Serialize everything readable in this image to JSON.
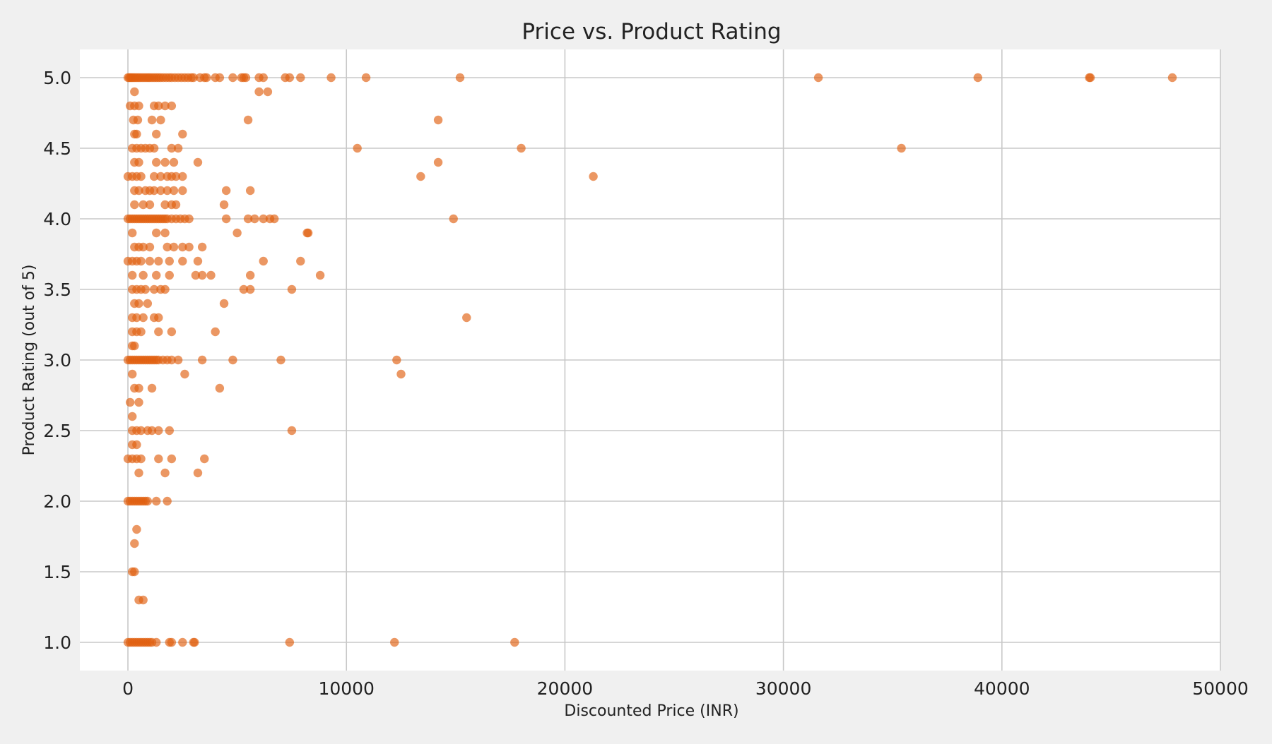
{
  "chart_data": {
    "type": "scatter",
    "title": "Price vs. Product Rating",
    "xlabel": "Discounted Price (INR)",
    "ylabel": "Product Rating (out of 5)",
    "xlim": [
      -2200,
      50000
    ],
    "ylim": [
      0.8,
      5.2
    ],
    "xticks": [
      0,
      10000,
      20000,
      30000,
      40000,
      50000
    ],
    "xtick_labels": [
      "0",
      "10000",
      "20000",
      "30000",
      "40000",
      "50000"
    ],
    "yticks": [
      1.0,
      1.5,
      2.0,
      2.5,
      3.0,
      3.5,
      4.0,
      4.5,
      5.0
    ],
    "ytick_labels": [
      "1.0",
      "1.5",
      "2.0",
      "2.5",
      "3.0",
      "3.5",
      "4.0",
      "4.5",
      "5.0"
    ],
    "grid": true,
    "point_color": "#e06010",
    "plot_background": "#ffffff",
    "figure_background": "#f0f0f0",
    "series": [
      {
        "points": [
          [
            0,
            5.0
          ],
          [
            60,
            5.0
          ],
          [
            120,
            5.0
          ],
          [
            180,
            5.0
          ],
          [
            250,
            5.0
          ],
          [
            320,
            5.0
          ],
          [
            400,
            5.0
          ],
          [
            480,
            5.0
          ],
          [
            560,
            5.0
          ],
          [
            650,
            5.0
          ],
          [
            740,
            5.0
          ],
          [
            830,
            5.0
          ],
          [
            920,
            5.0
          ],
          [
            1000,
            5.0
          ],
          [
            1100,
            5.0
          ],
          [
            1200,
            5.0
          ],
          [
            1300,
            5.0
          ],
          [
            1400,
            5.0
          ],
          [
            1500,
            5.0
          ],
          [
            1620,
            5.0
          ],
          [
            1750,
            5.0
          ],
          [
            1880,
            5.0
          ],
          [
            2000,
            5.0
          ],
          [
            2150,
            5.0
          ],
          [
            2300,
            5.0
          ],
          [
            2450,
            5.0
          ],
          [
            2600,
            5.0
          ],
          [
            2750,
            5.0
          ],
          [
            2900,
            5.0
          ],
          [
            3000,
            5.0
          ],
          [
            3300,
            5.0
          ],
          [
            3500,
            5.0
          ],
          [
            3600,
            5.0
          ],
          [
            4000,
            5.0
          ],
          [
            4200,
            5.0
          ],
          [
            4800,
            5.0
          ],
          [
            5200,
            5.0
          ],
          [
            5300,
            5.0
          ],
          [
            5400,
            5.0
          ],
          [
            6000,
            5.0
          ],
          [
            6200,
            5.0
          ],
          [
            7200,
            5.0
          ],
          [
            7400,
            5.0
          ],
          [
            7900,
            5.0
          ],
          [
            9300,
            5.0
          ],
          [
            10900,
            5.0
          ],
          [
            15200,
            5.0
          ],
          [
            31600,
            5.0
          ],
          [
            38900,
            5.0
          ],
          [
            44000,
            5.0
          ],
          [
            44050,
            5.0
          ],
          [
            47800,
            5.0
          ],
          [
            300,
            4.9
          ],
          [
            6000,
            4.9
          ],
          [
            6400,
            4.9
          ],
          [
            100,
            4.8
          ],
          [
            300,
            4.8
          ],
          [
            500,
            4.8
          ],
          [
            1200,
            4.8
          ],
          [
            1400,
            4.8
          ],
          [
            1700,
            4.8
          ],
          [
            2000,
            4.8
          ],
          [
            250,
            4.7
          ],
          [
            450,
            4.7
          ],
          [
            1100,
            4.7
          ],
          [
            1500,
            4.7
          ],
          [
            5500,
            4.7
          ],
          [
            14200,
            4.7
          ],
          [
            300,
            4.6
          ],
          [
            400,
            4.6
          ],
          [
            1300,
            4.6
          ],
          [
            2500,
            4.6
          ],
          [
            200,
            4.5
          ],
          [
            400,
            4.5
          ],
          [
            600,
            4.5
          ],
          [
            800,
            4.5
          ],
          [
            1000,
            4.5
          ],
          [
            1200,
            4.5
          ],
          [
            2000,
            4.5
          ],
          [
            2300,
            4.5
          ],
          [
            10500,
            4.5
          ],
          [
            18000,
            4.5
          ],
          [
            35400,
            4.5
          ],
          [
            300,
            4.4
          ],
          [
            500,
            4.4
          ],
          [
            1300,
            4.4
          ],
          [
            1700,
            4.4
          ],
          [
            2100,
            4.4
          ],
          [
            3200,
            4.4
          ],
          [
            14200,
            4.4
          ],
          [
            0,
            4.3
          ],
          [
            200,
            4.3
          ],
          [
            400,
            4.3
          ],
          [
            600,
            4.3
          ],
          [
            1200,
            4.3
          ],
          [
            1500,
            4.3
          ],
          [
            1800,
            4.3
          ],
          [
            2000,
            4.3
          ],
          [
            2200,
            4.3
          ],
          [
            2500,
            4.3
          ],
          [
            13400,
            4.3
          ],
          [
            21300,
            4.3
          ],
          [
            300,
            4.2
          ],
          [
            500,
            4.2
          ],
          [
            800,
            4.2
          ],
          [
            1000,
            4.2
          ],
          [
            1200,
            4.2
          ],
          [
            1500,
            4.2
          ],
          [
            1800,
            4.2
          ],
          [
            2100,
            4.2
          ],
          [
            2500,
            4.2
          ],
          [
            4500,
            4.2
          ],
          [
            5600,
            4.2
          ],
          [
            300,
            4.1
          ],
          [
            700,
            4.1
          ],
          [
            1000,
            4.1
          ],
          [
            1700,
            4.1
          ],
          [
            2000,
            4.1
          ],
          [
            2200,
            4.1
          ],
          [
            4400,
            4.1
          ],
          [
            0,
            4.0
          ],
          [
            100,
            4.0
          ],
          [
            200,
            4.0
          ],
          [
            300,
            4.0
          ],
          [
            400,
            4.0
          ],
          [
            500,
            4.0
          ],
          [
            600,
            4.0
          ],
          [
            700,
            4.0
          ],
          [
            800,
            4.0
          ],
          [
            900,
            4.0
          ],
          [
            1000,
            4.0
          ],
          [
            1100,
            4.0
          ],
          [
            1200,
            4.0
          ],
          [
            1300,
            4.0
          ],
          [
            1400,
            4.0
          ],
          [
            1500,
            4.0
          ],
          [
            1600,
            4.0
          ],
          [
            1700,
            4.0
          ],
          [
            1800,
            4.0
          ],
          [
            2000,
            4.0
          ],
          [
            2200,
            4.0
          ],
          [
            2400,
            4.0
          ],
          [
            2600,
            4.0
          ],
          [
            2800,
            4.0
          ],
          [
            4500,
            4.0
          ],
          [
            5500,
            4.0
          ],
          [
            5800,
            4.0
          ],
          [
            6200,
            4.0
          ],
          [
            6500,
            4.0
          ],
          [
            6700,
            4.0
          ],
          [
            14900,
            4.0
          ],
          [
            200,
            3.9
          ],
          [
            1300,
            3.9
          ],
          [
            1700,
            3.9
          ],
          [
            5000,
            3.9
          ],
          [
            8200,
            3.9
          ],
          [
            8250,
            3.9
          ],
          [
            300,
            3.8
          ],
          [
            500,
            3.8
          ],
          [
            700,
            3.8
          ],
          [
            1000,
            3.8
          ],
          [
            1800,
            3.8
          ],
          [
            2100,
            3.8
          ],
          [
            2500,
            3.8
          ],
          [
            2800,
            3.8
          ],
          [
            3400,
            3.8
          ],
          [
            0,
            3.7
          ],
          [
            200,
            3.7
          ],
          [
            400,
            3.7
          ],
          [
            600,
            3.7
          ],
          [
            1000,
            3.7
          ],
          [
            1400,
            3.7
          ],
          [
            1900,
            3.7
          ],
          [
            2500,
            3.7
          ],
          [
            3200,
            3.7
          ],
          [
            6200,
            3.7
          ],
          [
            7900,
            3.7
          ],
          [
            200,
            3.6
          ],
          [
            700,
            3.6
          ],
          [
            1300,
            3.6
          ],
          [
            1900,
            3.6
          ],
          [
            3100,
            3.6
          ],
          [
            3400,
            3.6
          ],
          [
            3800,
            3.6
          ],
          [
            5600,
            3.6
          ],
          [
            8800,
            3.6
          ],
          [
            200,
            3.5
          ],
          [
            400,
            3.5
          ],
          [
            600,
            3.5
          ],
          [
            800,
            3.5
          ],
          [
            1200,
            3.5
          ],
          [
            1500,
            3.5
          ],
          [
            1700,
            3.5
          ],
          [
            5300,
            3.5
          ],
          [
            5600,
            3.5
          ],
          [
            7500,
            3.5
          ],
          [
            300,
            3.4
          ],
          [
            500,
            3.4
          ],
          [
            900,
            3.4
          ],
          [
            4400,
            3.4
          ],
          [
            200,
            3.3
          ],
          [
            400,
            3.3
          ],
          [
            700,
            3.3
          ],
          [
            1200,
            3.3
          ],
          [
            1400,
            3.3
          ],
          [
            15500,
            3.3
          ],
          [
            200,
            3.2
          ],
          [
            400,
            3.2
          ],
          [
            600,
            3.2
          ],
          [
            1400,
            3.2
          ],
          [
            2000,
            3.2
          ],
          [
            4000,
            3.2
          ],
          [
            200,
            3.1
          ],
          [
            300,
            3.1
          ],
          [
            0,
            3.0
          ],
          [
            100,
            3.0
          ],
          [
            200,
            3.0
          ],
          [
            300,
            3.0
          ],
          [
            400,
            3.0
          ],
          [
            500,
            3.0
          ],
          [
            600,
            3.0
          ],
          [
            700,
            3.0
          ],
          [
            800,
            3.0
          ],
          [
            900,
            3.0
          ],
          [
            1000,
            3.0
          ],
          [
            1100,
            3.0
          ],
          [
            1200,
            3.0
          ],
          [
            1300,
            3.0
          ],
          [
            1400,
            3.0
          ],
          [
            1600,
            3.0
          ],
          [
            1800,
            3.0
          ],
          [
            2000,
            3.0
          ],
          [
            2300,
            3.0
          ],
          [
            3400,
            3.0
          ],
          [
            4800,
            3.0
          ],
          [
            7000,
            3.0
          ],
          [
            12300,
            3.0
          ],
          [
            200,
            2.9
          ],
          [
            2600,
            2.9
          ],
          [
            12500,
            2.9
          ],
          [
            300,
            2.8
          ],
          [
            500,
            2.8
          ],
          [
            1100,
            2.8
          ],
          [
            4200,
            2.8
          ],
          [
            100,
            2.7
          ],
          [
            500,
            2.7
          ],
          [
            200,
            2.6
          ],
          [
            200,
            2.5
          ],
          [
            400,
            2.5
          ],
          [
            600,
            2.5
          ],
          [
            900,
            2.5
          ],
          [
            1100,
            2.5
          ],
          [
            1400,
            2.5
          ],
          [
            1900,
            2.5
          ],
          [
            7500,
            2.5
          ],
          [
            200,
            2.4
          ],
          [
            400,
            2.4
          ],
          [
            0,
            2.3
          ],
          [
            200,
            2.3
          ],
          [
            400,
            2.3
          ],
          [
            600,
            2.3
          ],
          [
            1400,
            2.3
          ],
          [
            2000,
            2.3
          ],
          [
            3500,
            2.3
          ],
          [
            500,
            2.2
          ],
          [
            1700,
            2.2
          ],
          [
            3200,
            2.2
          ],
          [
            0,
            2.0
          ],
          [
            100,
            2.0
          ],
          [
            200,
            2.0
          ],
          [
            300,
            2.0
          ],
          [
            400,
            2.0
          ],
          [
            500,
            2.0
          ],
          [
            600,
            2.0
          ],
          [
            700,
            2.0
          ],
          [
            800,
            2.0
          ],
          [
            900,
            2.0
          ],
          [
            1300,
            2.0
          ],
          [
            1800,
            2.0
          ],
          [
            400,
            1.8
          ],
          [
            300,
            1.7
          ],
          [
            200,
            1.5
          ],
          [
            300,
            1.5
          ],
          [
            500,
            1.3
          ],
          [
            700,
            1.3
          ],
          [
            0,
            1.0
          ],
          [
            100,
            1.0
          ],
          [
            200,
            1.0
          ],
          [
            300,
            1.0
          ],
          [
            400,
            1.0
          ],
          [
            500,
            1.0
          ],
          [
            600,
            1.0
          ],
          [
            700,
            1.0
          ],
          [
            800,
            1.0
          ],
          [
            900,
            1.0
          ],
          [
            1000,
            1.0
          ],
          [
            1100,
            1.0
          ],
          [
            1300,
            1.0
          ],
          [
            1900,
            1.0
          ],
          [
            2000,
            1.0
          ],
          [
            2500,
            1.0
          ],
          [
            3000,
            1.0
          ],
          [
            3050,
            1.0
          ],
          [
            7400,
            1.0
          ],
          [
            12200,
            1.0
          ],
          [
            17700,
            1.0
          ]
        ]
      }
    ]
  }
}
